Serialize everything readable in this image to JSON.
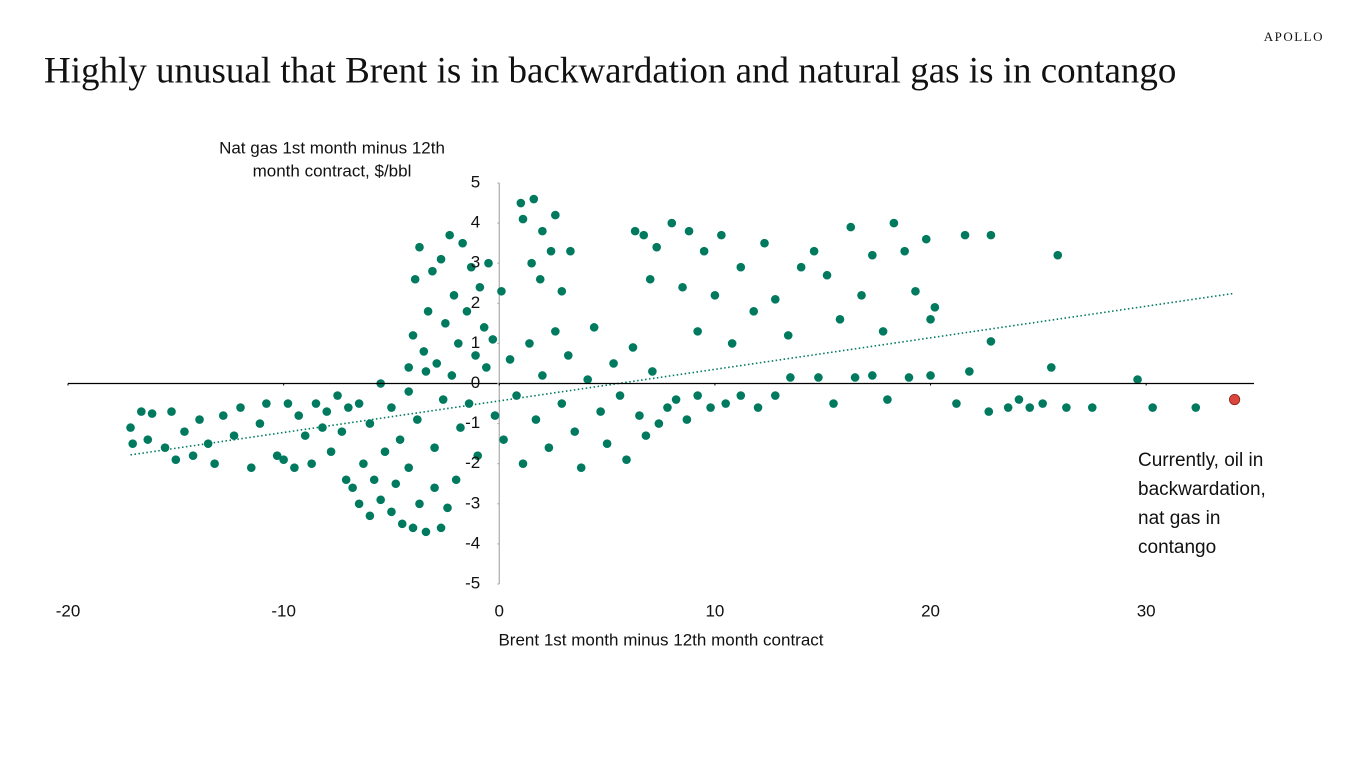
{
  "chart_data": {
    "type": "scatter",
    "title": "Highly unusual that Brent is in backwardation and natural gas is in contango",
    "brand": "APOLLO",
    "y_label": [
      "Nat gas 1st month minus 12th",
      "month contract, $/bbl"
    ],
    "x_label": "Brent 1st month minus 12th month contract",
    "annotation": [
      "Currently, oil in",
      "backwardation,",
      "nat gas in",
      "contango"
    ],
    "xlim": [
      -20,
      35
    ],
    "ylim": [
      -5,
      5
    ],
    "xticks": [
      -20,
      -10,
      0,
      10,
      20,
      30
    ],
    "yticks": [
      -5,
      -4,
      -3,
      -2,
      -1,
      0,
      1,
      2,
      3,
      4,
      5
    ],
    "series": [
      {
        "color": "#007a5e",
        "x": [
          -17.1,
          -17,
          -16.6,
          -16.3,
          -16.1,
          -15.5,
          -15.2,
          -15,
          -14.6,
          -14.2,
          -13.9,
          -13.5,
          -13.2,
          -12.8,
          -12.3,
          -12,
          -11.5,
          -11.1,
          -10.8,
          -10.3,
          -10,
          -9.8,
          -9.5,
          -9.3,
          -9,
          -8.7,
          -8.5,
          -8.2,
          -8,
          -7.8,
          -7.5,
          -7.3,
          -7.1,
          -7,
          -6.8,
          -6.5,
          -6.3,
          -6,
          -5.8,
          -5.5,
          -5.3,
          -5,
          -4.8,
          -4.5,
          -4.2,
          -4,
          -3.7,
          -3.4,
          -3,
          -2.7,
          -2.4,
          -2,
          -4.2,
          -4,
          -3.9,
          -3.7,
          -3.5,
          -3.3,
          -3.1,
          -2.9,
          -2.7,
          -2.5,
          -2.3,
          -2.1,
          -1.9,
          -1.7,
          -1.5,
          -1.3,
          -1.1,
          -0.9,
          -0.7,
          -0.5,
          -0.3,
          0.1,
          -6.5,
          -6,
          -5.5,
          -5,
          -4.6,
          -4.2,
          -3.8,
          -3.4,
          -3,
          -2.6,
          -2.2,
          -1.8,
          -1.4,
          -1,
          -0.6,
          -0.2,
          0.2,
          0.5,
          0.8,
          1.1,
          1.4,
          1.7,
          2,
          2.3,
          2.6,
          2.9,
          3.2,
          3.5,
          3.8,
          4.1,
          4.4,
          4.7,
          5,
          5.3,
          5.6,
          5.9,
          6.2,
          6.5,
          6.8,
          7.1,
          7.4,
          7.8,
          8.2,
          8.7,
          9.2,
          9.8,
          10.5,
          11.2,
          12,
          12.8,
          1,
          1.1,
          1.6,
          2,
          2.4,
          2.6,
          1.5,
          2.9,
          3.3,
          1.9,
          6.3,
          6.7,
          7,
          7.3,
          8,
          8.5,
          8.8,
          9.2,
          9.5,
          10,
          10.3,
          10.8,
          11.2,
          11.8,
          12.3,
          12.8,
          13.4,
          14,
          14.6,
          15.2,
          15.8,
          16.3,
          16.8,
          17.3,
          17.8,
          18.3,
          18.8,
          19.3,
          19.8,
          20.2,
          20,
          21.6,
          22.8,
          25.9,
          22.8,
          13.5,
          14.8,
          15.5,
          16.5,
          17.3,
          18,
          19,
          20,
          21.2,
          21.8,
          22.7,
          23.6,
          24.1,
          24.6,
          25.2,
          25.6,
          26.3,
          27.5,
          29.6,
          30.3,
          32.3
        ],
        "values": [
          -1.1,
          -1.5,
          -0.7,
          -1.4,
          -0.75,
          -1.6,
          -0.7,
          -1.9,
          -1.2,
          -1.8,
          -0.9,
          -1.5,
          -2,
          -0.8,
          -1.3,
          -0.6,
          -2.1,
          -1,
          -0.5,
          -1.8,
          -1.9,
          -0.5,
          -2.1,
          -0.8,
          -1.3,
          -2,
          -0.5,
          -1.1,
          -0.7,
          -1.7,
          -0.3,
          -1.2,
          -2.4,
          -0.6,
          -2.6,
          -3,
          -2,
          -3.3,
          -2.4,
          -2.9,
          -1.7,
          -3.2,
          -2.5,
          -3.5,
          -2.1,
          -3.6,
          -3,
          -3.7,
          -2.6,
          -3.6,
          -3.1,
          -2.4,
          0.4,
          1.2,
          2.6,
          3.4,
          0.8,
          1.8,
          2.8,
          0.5,
          3.1,
          1.5,
          3.7,
          2.2,
          1,
          3.5,
          1.8,
          2.9,
          0.7,
          2.4,
          1.4,
          3,
          1.1,
          2.3,
          -0.5,
          -1,
          0,
          -0.6,
          -1.4,
          -0.2,
          -0.9,
          0.3,
          -1.6,
          -0.4,
          0.2,
          -1.1,
          -0.5,
          -1.8,
          0.4,
          -0.8,
          -1.4,
          0.6,
          -0.3,
          -2,
          1,
          -0.9,
          0.2,
          -1.6,
          1.3,
          -0.5,
          0.7,
          -1.2,
          -2.1,
          0.1,
          1.4,
          -0.7,
          -1.5,
          0.5,
          -0.3,
          -1.9,
          0.9,
          -0.8,
          -1.3,
          0.3,
          -1,
          -0.6,
          -0.4,
          -0.9,
          -0.3,
          -0.6,
          -0.5,
          -0.3,
          -0.6,
          -0.3,
          4.5,
          4.1,
          4.6,
          3.8,
          3.3,
          4.2,
          3,
          2.3,
          3.3,
          2.6,
          3.8,
          3.7,
          2.6,
          3.4,
          4,
          2.4,
          3.8,
          1.3,
          3.3,
          2.2,
          3.7,
          1,
          2.9,
          1.8,
          3.5,
          2.1,
          1.2,
          2.9,
          3.3,
          2.7,
          1.6,
          3.9,
          2.2,
          3.2,
          1.3,
          4,
          3.3,
          2.3,
          3.6,
          1.9,
          1.6,
          3.7,
          3.7,
          3.2,
          1.05,
          0.15,
          0.15,
          -0.5,
          0.15,
          0.2,
          -0.4,
          0.15,
          0.2,
          -0.5,
          0.3,
          -0.7,
          -0.6,
          -0.4,
          -0.6,
          -0.5,
          0.4,
          -0.6,
          -0.6,
          0.1,
          -0.6,
          -0.6
        ]
      },
      {
        "color": "#d9463e",
        "x": [
          34.1
        ],
        "values": [
          -0.4
        ]
      }
    ],
    "trendline": {
      "color": "#007a5e",
      "x": [
        -17.1,
        34.1
      ],
      "values": [
        -1.78,
        2.25
      ]
    }
  }
}
